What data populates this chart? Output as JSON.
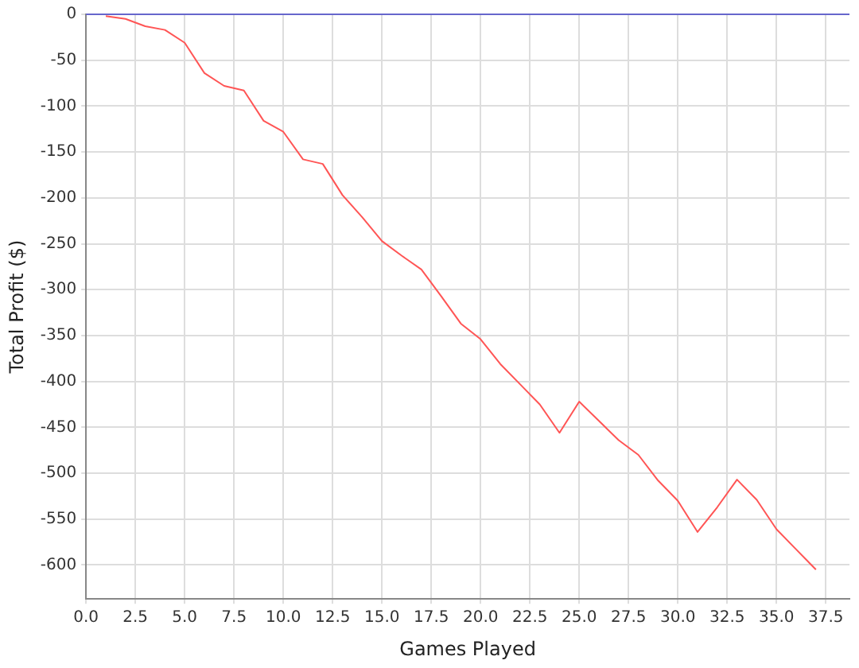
{
  "chart_data": {
    "type": "line",
    "xlabel": "Games Played",
    "ylabel": "Total Profit ($)",
    "x": [
      1,
      2,
      3,
      4,
      5,
      6,
      7,
      8,
      9,
      10,
      11,
      12,
      13,
      14,
      15,
      16,
      17,
      18,
      19,
      20,
      21,
      22,
      23,
      24,
      25,
      26,
      27,
      28,
      29,
      30,
      31,
      32,
      33,
      34,
      35,
      36,
      37
    ],
    "series": [
      {
        "color": "#ff5555",
        "values": [
          -2,
          -5,
          -13,
          -17,
          -31,
          -64,
          -78,
          -83,
          -116,
          -128,
          -158,
          -163,
          -197,
          -221,
          -247,
          -263,
          -278,
          -307,
          -337,
          -354,
          -381,
          -403,
          -425,
          -456,
          -422,
          -443,
          -464,
          -480,
          -508,
          -530,
          -564,
          -537,
          -507,
          -529,
          -561,
          -583,
          -605
        ]
      }
    ],
    "xlim": [
      0,
      38.7
    ],
    "xticks": [
      {
        "value": 0,
        "label": "0.0"
      },
      {
        "value": 2.5,
        "label": "2.5"
      },
      {
        "value": 5,
        "label": "5.0"
      },
      {
        "value": 7.5,
        "label": "7.5"
      },
      {
        "value": 10,
        "label": "10.0"
      },
      {
        "value": 12.5,
        "label": "12.5"
      },
      {
        "value": 15,
        "label": "15.0"
      },
      {
        "value": 17.5,
        "label": "17.5"
      },
      {
        "value": 20,
        "label": "20.0"
      },
      {
        "value": 22.5,
        "label": "22.5"
      },
      {
        "value": 25,
        "label": "25.0"
      },
      {
        "value": 27.5,
        "label": "27.5"
      },
      {
        "value": 30,
        "label": "30.0"
      },
      {
        "value": 32.5,
        "label": "32.5"
      },
      {
        "value": 35,
        "label": "35.0"
      },
      {
        "value": 37.5,
        "label": "37.5"
      }
    ],
    "ylim": [
      -637,
      0
    ],
    "yticks": [
      0,
      -50,
      -100,
      -150,
      -200,
      -250,
      -300,
      -350,
      -400,
      -450,
      -500,
      -550,
      -600
    ],
    "ref_lines": [
      {
        "axis": "y",
        "value": 0,
        "color": "#6666cc"
      }
    ],
    "grid": true,
    "legend": false,
    "marker": "none",
    "line_style": "solid"
  }
}
